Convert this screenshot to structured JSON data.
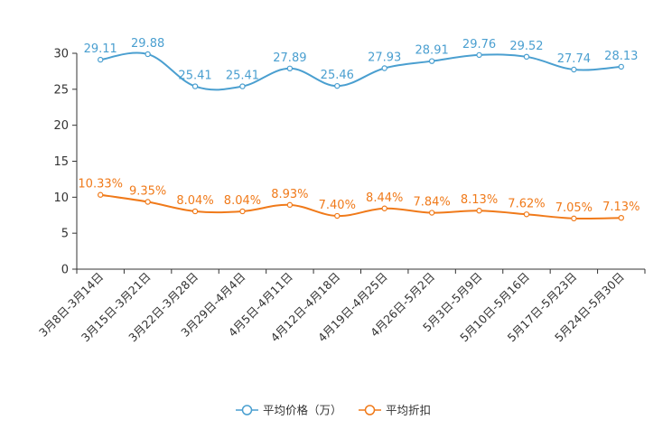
{
  "chart_data": {
    "type": "line",
    "title": "",
    "xlabel": "",
    "ylabel": "",
    "ylim": [
      0,
      30
    ],
    "yticks": [
      0,
      5,
      10,
      15,
      20,
      25,
      30
    ],
    "categories": [
      "3月8日-3月14日",
      "3月15日-3月21日",
      "3月22日-3月28日",
      "3月29日-4月4日",
      "4月5日-4月11日",
      "4月12日-4月18日",
      "4月19日-4月25日",
      "4月26日-5月2日",
      "5月3日-5月9日",
      "5月10日-5月16日",
      "5月17日-5月23日",
      "5月24日-5月30日"
    ],
    "series": [
      {
        "name": "平均价格（万）",
        "color": "#4a9fd0",
        "values": [
          29.11,
          29.88,
          25.41,
          25.41,
          27.89,
          25.46,
          27.93,
          28.91,
          29.76,
          29.52,
          27.74,
          28.13
        ],
        "labels": [
          "29.11",
          "29.88",
          "25.41",
          "25.41",
          "27.89",
          "25.46",
          "27.93",
          "28.91",
          "29.76",
          "29.52",
          "27.74",
          "28.13"
        ]
      },
      {
        "name": "平均折扣",
        "color": "#f07a1a",
        "values": [
          10.33,
          9.35,
          8.04,
          8.04,
          8.93,
          7.4,
          8.44,
          7.84,
          8.13,
          7.62,
          7.05,
          7.13
        ],
        "labels": [
          "10.33%",
          "9.35%",
          "8.04%",
          "8.04%",
          "8.93%",
          "7.40%",
          "8.44%",
          "7.84%",
          "8.13%",
          "7.62%",
          "7.05%",
          "7.13%"
        ]
      }
    ],
    "legend_position": "bottom-center",
    "grid": false
  }
}
